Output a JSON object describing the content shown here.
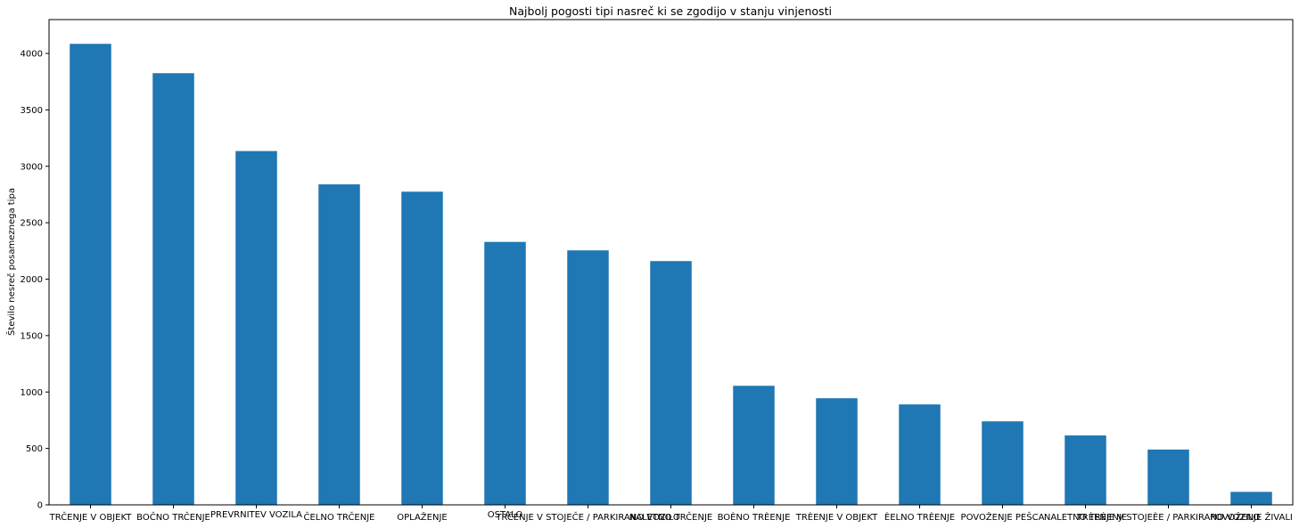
{
  "chart_data": {
    "type": "bar",
    "title": "Najbolj pogosti tipi nasreč ki se zgodijo v stanju vinjenosti",
    "xlabel": "",
    "ylabel": "Število nesreč posameznega tipa",
    "ylim": [
      0,
      4300
    ],
    "yticks": [
      0,
      500,
      1000,
      1500,
      2000,
      2500,
      3000,
      3500,
      4000
    ],
    "grid": false,
    "color": "#1f77b4",
    "categories": [
      "TRČENJE V OBJEKT",
      "BOČNO TRČENJE",
      "PREVRNITEV VOZILA",
      "ČELNO TRČENJE",
      "OPLAŽENJE",
      "OSTALO",
      "TRČENJE V STOJEČE / PARKIRANO VOZILO",
      "NALETNO TRČENJE",
      "BOÈNO TRÈENJE",
      "TRÈENJE V OBJEKT",
      "ÈELNO TRÈENJE",
      "POVOŽENJE PEŠCA",
      "NALETNO TRÈENJE",
      "TRÈENJE V STOJEÈE / PARKIRANO VOZILO",
      "POVOŽENJE ŽIVALI"
    ],
    "values": [
      4085,
      3825,
      3135,
      2840,
      2775,
      2330,
      2255,
      2160,
      1055,
      945,
      890,
      740,
      615,
      490,
      115
    ]
  }
}
